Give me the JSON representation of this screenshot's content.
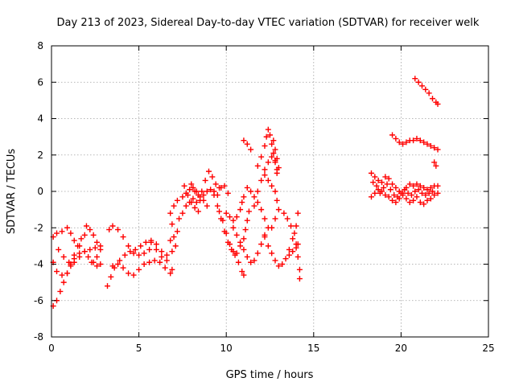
{
  "chart_data": {
    "type": "scatter",
    "title": "Day 213 of 2023, Sidereal Day-to-day VTEC variation (SDTVAR) for receiver welk",
    "xlabel": "GPS time / hours",
    "ylabel": "SDTVAR / TECUs",
    "xlim": [
      0,
      25
    ],
    "ylim": [
      -8,
      8
    ],
    "x_ticks": [
      "0",
      "5",
      "10",
      "15",
      "20",
      "25"
    ],
    "y_ticks": [
      "-8",
      "-6",
      "-4",
      "-2",
      "0",
      "2",
      "4",
      "6",
      "8"
    ],
    "grid": true,
    "marker": "plus",
    "color": "#ff0000",
    "series": [
      {
        "points": [
          [
            0.1,
            -2.5
          ],
          [
            0.3,
            -2.3
          ],
          [
            0.6,
            -2.2
          ],
          [
            0.9,
            -2.0
          ],
          [
            1.1,
            -2.3
          ],
          [
            1.3,
            -2.7
          ],
          [
            1.6,
            -3.0
          ],
          [
            1.9,
            -3.3
          ],
          [
            2.1,
            -3.6
          ],
          [
            2.3,
            -3.9
          ],
          [
            0.1,
            -3.9
          ],
          [
            0.3,
            -4.4
          ],
          [
            0.6,
            -4.6
          ],
          [
            0.9,
            -4.5
          ],
          [
            1.1,
            -4.1
          ],
          [
            1.3,
            -3.7
          ],
          [
            1.6,
            -3.4
          ],
          [
            1.9,
            -3.3
          ],
          [
            2.2,
            -3.2
          ],
          [
            2.5,
            -3.1
          ],
          [
            2.8,
            -3.0
          ],
          [
            0.1,
            -6.3
          ],
          [
            0.3,
            -6.0
          ],
          [
            0.5,
            -5.5
          ],
          [
            0.7,
            -5.0
          ],
          [
            0.9,
            -4.5
          ],
          [
            1.1,
            -4.0
          ],
          [
            1.3,
            -3.5
          ],
          [
            1.5,
            -3.0
          ],
          [
            1.7,
            -2.6
          ],
          [
            1.9,
            -2.4
          ],
          [
            0.4,
            -3.2
          ],
          [
            0.7,
            -3.6
          ],
          [
            1.0,
            -3.9
          ],
          [
            1.3,
            -3.9
          ],
          [
            1.6,
            -3.6
          ],
          [
            2.0,
            -1.9
          ],
          [
            2.2,
            -2.1
          ],
          [
            2.4,
            -2.4
          ],
          [
            2.6,
            -2.8
          ],
          [
            2.8,
            -3.2
          ],
          [
            2.6,
            -3.6
          ],
          [
            2.4,
            -3.9
          ],
          [
            2.6,
            -4.1
          ],
          [
            2.8,
            -4.0
          ],
          [
            3.2,
            -5.2
          ],
          [
            3.4,
            -4.7
          ],
          [
            3.6,
            -4.2
          ],
          [
            3.9,
            -3.8
          ],
          [
            4.2,
            -3.5
          ],
          [
            4.5,
            -3.3
          ],
          [
            4.8,
            -3.2
          ],
          [
            5.1,
            -3.0
          ],
          [
            5.4,
            -2.8
          ],
          [
            5.7,
            -2.7
          ],
          [
            6.0,
            -2.9
          ],
          [
            6.3,
            -3.3
          ],
          [
            6.6,
            -3.8
          ],
          [
            6.9,
            -4.3
          ],
          [
            3.3,
            -2.1
          ],
          [
            3.5,
            -1.9
          ],
          [
            3.8,
            -2.1
          ],
          [
            4.1,
            -2.5
          ],
          [
            4.4,
            -3.0
          ],
          [
            4.7,
            -3.4
          ],
          [
            5.0,
            -3.5
          ],
          [
            5.3,
            -3.4
          ],
          [
            5.6,
            -3.2
          ],
          [
            3.5,
            -4.1
          ],
          [
            3.8,
            -4.0
          ],
          [
            4.1,
            -4.2
          ],
          [
            4.4,
            -4.5
          ],
          [
            4.7,
            -4.6
          ],
          [
            5.0,
            -4.3
          ],
          [
            5.3,
            -4.0
          ],
          [
            5.6,
            -3.9
          ],
          [
            5.9,
            -3.8
          ],
          [
            6.2,
            -3.9
          ],
          [
            6.5,
            -4.2
          ],
          [
            6.8,
            -4.5
          ],
          [
            5.7,
            -2.8
          ],
          [
            6.0,
            -3.2
          ],
          [
            6.3,
            -3.6
          ],
          [
            6.6,
            -3.5
          ],
          [
            6.9,
            -3.3
          ],
          [
            7.1,
            -3.0
          ],
          [
            6.8,
            -2.7
          ],
          [
            7.0,
            -2.5
          ],
          [
            7.2,
            -2.2
          ],
          [
            6.9,
            -1.8
          ],
          [
            6.8,
            -1.2
          ],
          [
            7.0,
            -0.8
          ],
          [
            7.2,
            -0.5
          ],
          [
            7.3,
            -1.5
          ],
          [
            7.5,
            -1.2
          ],
          [
            7.7,
            -0.8
          ],
          [
            7.9,
            -0.6
          ],
          [
            8.1,
            -0.4
          ],
          [
            8.3,
            -0.6
          ],
          [
            8.5,
            -0.5
          ],
          [
            8.7,
            -0.2
          ],
          [
            8.9,
            0.0
          ],
          [
            9.1,
            0.1
          ],
          [
            9.3,
            0.0
          ],
          [
            9.5,
            -0.2
          ],
          [
            9.7,
            0.2
          ],
          [
            9.9,
            0.3
          ],
          [
            10.1,
            -0.1
          ],
          [
            7.5,
            -0.3
          ],
          [
            7.7,
            -0.1
          ],
          [
            7.9,
            0.1
          ],
          [
            8.1,
            0.2
          ],
          [
            8.3,
            0.0
          ],
          [
            8.5,
            -0.3
          ],
          [
            8.7,
            -0.5
          ],
          [
            8.9,
            -0.8
          ],
          [
            8.0,
            0.4
          ],
          [
            8.2,
            0.0
          ],
          [
            8.4,
            -0.2
          ],
          [
            8.6,
            0.0
          ],
          [
            8.8,
            0.6
          ],
          [
            9.0,
            1.1
          ],
          [
            9.2,
            0.8
          ],
          [
            9.4,
            0.4
          ],
          [
            9.6,
            0.2
          ],
          [
            7.6,
            0.3
          ],
          [
            7.8,
            -0.2
          ],
          [
            8.0,
            -0.6
          ],
          [
            8.2,
            -0.9
          ],
          [
            8.4,
            -1.1
          ],
          [
            9.3,
            -0.2
          ],
          [
            9.5,
            -0.8
          ],
          [
            9.7,
            -1.5
          ],
          [
            9.9,
            -2.2
          ],
          [
            10.1,
            -2.8
          ],
          [
            10.3,
            -3.2
          ],
          [
            10.5,
            -3.5
          ],
          [
            10.7,
            -3.9
          ],
          [
            10.9,
            -4.4
          ],
          [
            11.0,
            -4.6
          ],
          [
            9.6,
            -1.1
          ],
          [
            9.8,
            -1.6
          ],
          [
            10.0,
            -2.3
          ],
          [
            10.2,
            -2.9
          ],
          [
            10.4,
            -3.3
          ],
          [
            10.6,
            -3.4
          ],
          [
            10.8,
            -3.0
          ],
          [
            11.0,
            -2.6
          ],
          [
            11.1,
            -2.1
          ],
          [
            11.2,
            -1.6
          ],
          [
            11.3,
            -1.1
          ],
          [
            10.4,
            -2.0
          ],
          [
            10.6,
            -2.4
          ],
          [
            10.8,
            -2.8
          ],
          [
            11.0,
            -3.2
          ],
          [
            11.2,
            -3.6
          ],
          [
            11.4,
            -3.9
          ],
          [
            11.6,
            -3.8
          ],
          [
            11.8,
            -3.4
          ],
          [
            12.0,
            -2.9
          ],
          [
            12.2,
            -2.4
          ],
          [
            10.0,
            -1.2
          ],
          [
            10.2,
            -1.4
          ],
          [
            10.4,
            -1.6
          ],
          [
            10.6,
            -1.4
          ],
          [
            10.8,
            -1.0
          ],
          [
            10.9,
            -0.6
          ],
          [
            11.0,
            -0.3
          ],
          [
            11.2,
            0.2
          ],
          [
            11.4,
            0.0
          ],
          [
            11.6,
            -0.3
          ],
          [
            11.8,
            -0.6
          ],
          [
            12.0,
            -1.0
          ],
          [
            12.2,
            -1.5
          ],
          [
            12.4,
            -2.0
          ],
          [
            11.6,
            -0.8
          ],
          [
            11.8,
            0.0
          ],
          [
            12.0,
            0.6
          ],
          [
            12.2,
            1.2
          ],
          [
            12.4,
            1.6
          ],
          [
            12.6,
            1.9
          ],
          [
            12.8,
            1.7
          ],
          [
            12.9,
            1.2
          ],
          [
            11.8,
            1.4
          ],
          [
            12.0,
            1.9
          ],
          [
            12.2,
            2.5
          ],
          [
            12.3,
            3.0
          ],
          [
            12.4,
            3.4
          ],
          [
            12.5,
            3.1
          ],
          [
            12.6,
            2.6
          ],
          [
            12.7,
            2.1
          ],
          [
            12.8,
            1.6
          ],
          [
            12.9,
            1.0
          ],
          [
            12.2,
            0.9
          ],
          [
            12.4,
            0.6
          ],
          [
            12.6,
            0.3
          ],
          [
            12.8,
            0.0
          ],
          [
            12.9,
            -0.5
          ],
          [
            13.0,
            -1.0
          ],
          [
            12.8,
            -1.5
          ],
          [
            12.6,
            -2.0
          ],
          [
            12.7,
            2.8
          ],
          [
            12.8,
            2.3
          ],
          [
            12.9,
            1.8
          ],
          [
            13.0,
            1.3
          ],
          [
            11.0,
            2.8
          ],
          [
            11.2,
            2.6
          ],
          [
            11.4,
            2.3
          ],
          [
            12.2,
            -2.5
          ],
          [
            12.4,
            -3.0
          ],
          [
            12.6,
            -3.4
          ],
          [
            12.8,
            -3.8
          ],
          [
            13.0,
            -4.1
          ],
          [
            13.2,
            -4.0
          ],
          [
            13.4,
            -3.7
          ],
          [
            13.6,
            -3.2
          ],
          [
            13.8,
            -2.6
          ],
          [
            14.0,
            -1.9
          ],
          [
            14.1,
            -1.2
          ],
          [
            13.3,
            -1.2
          ],
          [
            13.5,
            -1.5
          ],
          [
            13.7,
            -1.9
          ],
          [
            13.9,
            -2.3
          ],
          [
            14.0,
            -2.9
          ],
          [
            14.1,
            -3.6
          ],
          [
            14.2,
            -4.3
          ],
          [
            14.2,
            -4.8
          ],
          [
            13.6,
            -3.5
          ],
          [
            13.8,
            -3.3
          ],
          [
            14.0,
            -3.1
          ],
          [
            14.1,
            -2.9
          ],
          [
            18.3,
            1.0
          ],
          [
            18.5,
            0.8
          ],
          [
            18.7,
            0.6
          ],
          [
            18.9,
            0.5
          ],
          [
            19.1,
            0.8
          ],
          [
            19.3,
            0.7
          ],
          [
            19.5,
            0.4
          ],
          [
            19.7,
            0.2
          ],
          [
            19.9,
            0.0
          ],
          [
            20.1,
            -0.1
          ],
          [
            20.3,
            0.2
          ],
          [
            20.5,
            0.4
          ],
          [
            20.7,
            0.3
          ],
          [
            20.9,
            0.4
          ],
          [
            21.1,
            0.3
          ],
          [
            21.3,
            0.2
          ],
          [
            21.5,
            0.1
          ],
          [
            21.7,
            0.2
          ],
          [
            21.9,
            0.3
          ],
          [
            22.1,
            0.3
          ],
          [
            18.3,
            -0.3
          ],
          [
            18.5,
            -0.1
          ],
          [
            18.7,
            0.1
          ],
          [
            18.9,
            0.0
          ],
          [
            19.1,
            -0.2
          ],
          [
            19.3,
            -0.3
          ],
          [
            19.5,
            -0.5
          ],
          [
            19.7,
            -0.6
          ],
          [
            19.9,
            -0.4
          ],
          [
            20.1,
            -0.2
          ],
          [
            20.3,
            -0.4
          ],
          [
            20.5,
            -0.6
          ],
          [
            20.7,
            -0.5
          ],
          [
            20.9,
            -0.3
          ],
          [
            21.1,
            -0.6
          ],
          [
            21.3,
            -0.7
          ],
          [
            21.5,
            -0.5
          ],
          [
            21.7,
            -0.4
          ],
          [
            21.9,
            -0.2
          ],
          [
            22.1,
            -0.1
          ],
          [
            18.4,
            0.5
          ],
          [
            18.6,
            0.3
          ],
          [
            18.8,
            -0.1
          ],
          [
            19.0,
            0.2
          ],
          [
            19.2,
            0.4
          ],
          [
            19.4,
            0.1
          ],
          [
            19.6,
            -0.2
          ],
          [
            19.8,
            -0.3
          ],
          [
            20.0,
            -0.1
          ],
          [
            20.2,
            0.1
          ],
          [
            20.4,
            -0.1
          ],
          [
            20.6,
            -0.2
          ],
          [
            20.8,
            0.0
          ],
          [
            21.0,
            0.1
          ],
          [
            21.2,
            -0.1
          ],
          [
            21.4,
            -0.2
          ],
          [
            21.6,
            -0.1
          ],
          [
            21.8,
            0.0
          ],
          [
            19.5,
            3.1
          ],
          [
            19.7,
            2.9
          ],
          [
            19.9,
            2.7
          ],
          [
            20.1,
            2.6
          ],
          [
            20.3,
            2.7
          ],
          [
            20.5,
            2.8
          ],
          [
            20.7,
            2.8
          ],
          [
            20.9,
            2.9
          ],
          [
            21.1,
            2.8
          ],
          [
            21.3,
            2.7
          ],
          [
            21.5,
            2.6
          ],
          [
            21.7,
            2.5
          ],
          [
            21.9,
            2.4
          ],
          [
            22.1,
            2.3
          ],
          [
            21.9,
            1.6
          ],
          [
            22.0,
            1.4
          ],
          [
            20.8,
            6.2
          ],
          [
            21.0,
            6.0
          ],
          [
            21.2,
            5.8
          ],
          [
            21.4,
            5.6
          ],
          [
            21.6,
            5.4
          ],
          [
            21.8,
            5.1
          ],
          [
            22.0,
            4.9
          ],
          [
            22.1,
            4.8
          ]
        ]
      }
    ]
  }
}
